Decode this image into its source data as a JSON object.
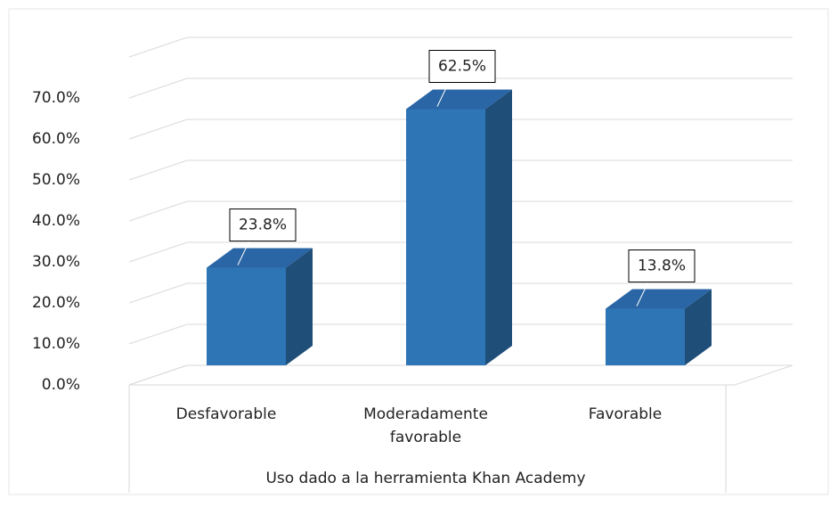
{
  "chart_data": {
    "type": "bar3d",
    "categories": [
      "Desfavorable",
      "Moderadamente favorable",
      "Favorable"
    ],
    "values": [
      23.8,
      62.5,
      13.8
    ],
    "value_labels": [
      "23.8%",
      "62.5%",
      "13.8%"
    ],
    "x_label": "Uso dado a la herramienta Khan Academy",
    "ylim": [
      0,
      80
    ],
    "yticks": [
      {
        "value": 0,
        "label": "0.0%"
      },
      {
        "value": 10,
        "label": "10.0%"
      },
      {
        "value": 20,
        "label": "20.0%"
      },
      {
        "value": 30,
        "label": "30.0%"
      },
      {
        "value": 40,
        "label": "40.0%"
      },
      {
        "value": 50,
        "label": "50.0%"
      },
      {
        "value": 60,
        "label": "60.0%"
      },
      {
        "value": 70,
        "label": "70.0%"
      }
    ],
    "grid": true,
    "color": "#2e75b6"
  }
}
